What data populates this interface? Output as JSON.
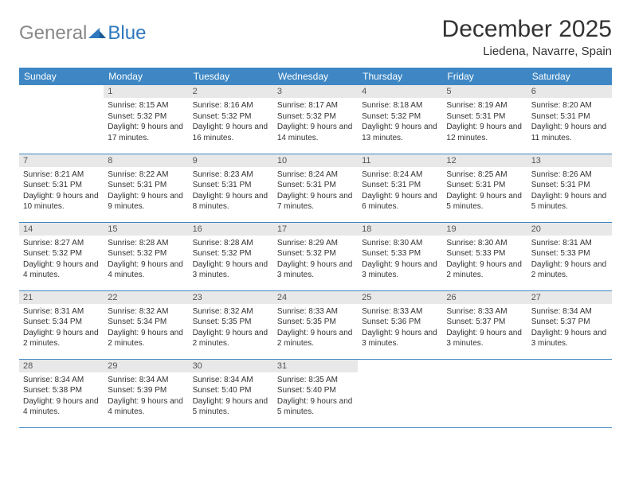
{
  "brand": {
    "text_gray": "General",
    "text_blue": "Blue"
  },
  "title": "December 2025",
  "location": "Liedena, Navarre, Spain",
  "colors": {
    "header_bg": "#3e87c4",
    "brand_blue": "#2f78bd",
    "daynum_bg": "#e8e8e8",
    "rule": "#3e87c4"
  },
  "weekdays": [
    "Sunday",
    "Monday",
    "Tuesday",
    "Wednesday",
    "Thursday",
    "Friday",
    "Saturday"
  ],
  "weeks": [
    [
      {
        "n": "",
        "sr": "",
        "ss": "",
        "dl": ""
      },
      {
        "n": "1",
        "sr": "Sunrise: 8:15 AM",
        "ss": "Sunset: 5:32 PM",
        "dl": "Daylight: 9 hours and 17 minutes."
      },
      {
        "n": "2",
        "sr": "Sunrise: 8:16 AM",
        "ss": "Sunset: 5:32 PM",
        "dl": "Daylight: 9 hours and 16 minutes."
      },
      {
        "n": "3",
        "sr": "Sunrise: 8:17 AM",
        "ss": "Sunset: 5:32 PM",
        "dl": "Daylight: 9 hours and 14 minutes."
      },
      {
        "n": "4",
        "sr": "Sunrise: 8:18 AM",
        "ss": "Sunset: 5:32 PM",
        "dl": "Daylight: 9 hours and 13 minutes."
      },
      {
        "n": "5",
        "sr": "Sunrise: 8:19 AM",
        "ss": "Sunset: 5:31 PM",
        "dl": "Daylight: 9 hours and 12 minutes."
      },
      {
        "n": "6",
        "sr": "Sunrise: 8:20 AM",
        "ss": "Sunset: 5:31 PM",
        "dl": "Daylight: 9 hours and 11 minutes."
      }
    ],
    [
      {
        "n": "7",
        "sr": "Sunrise: 8:21 AM",
        "ss": "Sunset: 5:31 PM",
        "dl": "Daylight: 9 hours and 10 minutes."
      },
      {
        "n": "8",
        "sr": "Sunrise: 8:22 AM",
        "ss": "Sunset: 5:31 PM",
        "dl": "Daylight: 9 hours and 9 minutes."
      },
      {
        "n": "9",
        "sr": "Sunrise: 8:23 AM",
        "ss": "Sunset: 5:31 PM",
        "dl": "Daylight: 9 hours and 8 minutes."
      },
      {
        "n": "10",
        "sr": "Sunrise: 8:24 AM",
        "ss": "Sunset: 5:31 PM",
        "dl": "Daylight: 9 hours and 7 minutes."
      },
      {
        "n": "11",
        "sr": "Sunrise: 8:24 AM",
        "ss": "Sunset: 5:31 PM",
        "dl": "Daylight: 9 hours and 6 minutes."
      },
      {
        "n": "12",
        "sr": "Sunrise: 8:25 AM",
        "ss": "Sunset: 5:31 PM",
        "dl": "Daylight: 9 hours and 5 minutes."
      },
      {
        "n": "13",
        "sr": "Sunrise: 8:26 AM",
        "ss": "Sunset: 5:31 PM",
        "dl": "Daylight: 9 hours and 5 minutes."
      }
    ],
    [
      {
        "n": "14",
        "sr": "Sunrise: 8:27 AM",
        "ss": "Sunset: 5:32 PM",
        "dl": "Daylight: 9 hours and 4 minutes."
      },
      {
        "n": "15",
        "sr": "Sunrise: 8:28 AM",
        "ss": "Sunset: 5:32 PM",
        "dl": "Daylight: 9 hours and 4 minutes."
      },
      {
        "n": "16",
        "sr": "Sunrise: 8:28 AM",
        "ss": "Sunset: 5:32 PM",
        "dl": "Daylight: 9 hours and 3 minutes."
      },
      {
        "n": "17",
        "sr": "Sunrise: 8:29 AM",
        "ss": "Sunset: 5:32 PM",
        "dl": "Daylight: 9 hours and 3 minutes."
      },
      {
        "n": "18",
        "sr": "Sunrise: 8:30 AM",
        "ss": "Sunset: 5:33 PM",
        "dl": "Daylight: 9 hours and 3 minutes."
      },
      {
        "n": "19",
        "sr": "Sunrise: 8:30 AM",
        "ss": "Sunset: 5:33 PM",
        "dl": "Daylight: 9 hours and 2 minutes."
      },
      {
        "n": "20",
        "sr": "Sunrise: 8:31 AM",
        "ss": "Sunset: 5:33 PM",
        "dl": "Daylight: 9 hours and 2 minutes."
      }
    ],
    [
      {
        "n": "21",
        "sr": "Sunrise: 8:31 AM",
        "ss": "Sunset: 5:34 PM",
        "dl": "Daylight: 9 hours and 2 minutes."
      },
      {
        "n": "22",
        "sr": "Sunrise: 8:32 AM",
        "ss": "Sunset: 5:34 PM",
        "dl": "Daylight: 9 hours and 2 minutes."
      },
      {
        "n": "23",
        "sr": "Sunrise: 8:32 AM",
        "ss": "Sunset: 5:35 PM",
        "dl": "Daylight: 9 hours and 2 minutes."
      },
      {
        "n": "24",
        "sr": "Sunrise: 8:33 AM",
        "ss": "Sunset: 5:35 PM",
        "dl": "Daylight: 9 hours and 2 minutes."
      },
      {
        "n": "25",
        "sr": "Sunrise: 8:33 AM",
        "ss": "Sunset: 5:36 PM",
        "dl": "Daylight: 9 hours and 3 minutes."
      },
      {
        "n": "26",
        "sr": "Sunrise: 8:33 AM",
        "ss": "Sunset: 5:37 PM",
        "dl": "Daylight: 9 hours and 3 minutes."
      },
      {
        "n": "27",
        "sr": "Sunrise: 8:34 AM",
        "ss": "Sunset: 5:37 PM",
        "dl": "Daylight: 9 hours and 3 minutes."
      }
    ],
    [
      {
        "n": "28",
        "sr": "Sunrise: 8:34 AM",
        "ss": "Sunset: 5:38 PM",
        "dl": "Daylight: 9 hours and 4 minutes."
      },
      {
        "n": "29",
        "sr": "Sunrise: 8:34 AM",
        "ss": "Sunset: 5:39 PM",
        "dl": "Daylight: 9 hours and 4 minutes."
      },
      {
        "n": "30",
        "sr": "Sunrise: 8:34 AM",
        "ss": "Sunset: 5:40 PM",
        "dl": "Daylight: 9 hours and 5 minutes."
      },
      {
        "n": "31",
        "sr": "Sunrise: 8:35 AM",
        "ss": "Sunset: 5:40 PM",
        "dl": "Daylight: 9 hours and 5 minutes."
      },
      {
        "n": "",
        "sr": "",
        "ss": "",
        "dl": ""
      },
      {
        "n": "",
        "sr": "",
        "ss": "",
        "dl": ""
      },
      {
        "n": "",
        "sr": "",
        "ss": "",
        "dl": ""
      }
    ]
  ]
}
